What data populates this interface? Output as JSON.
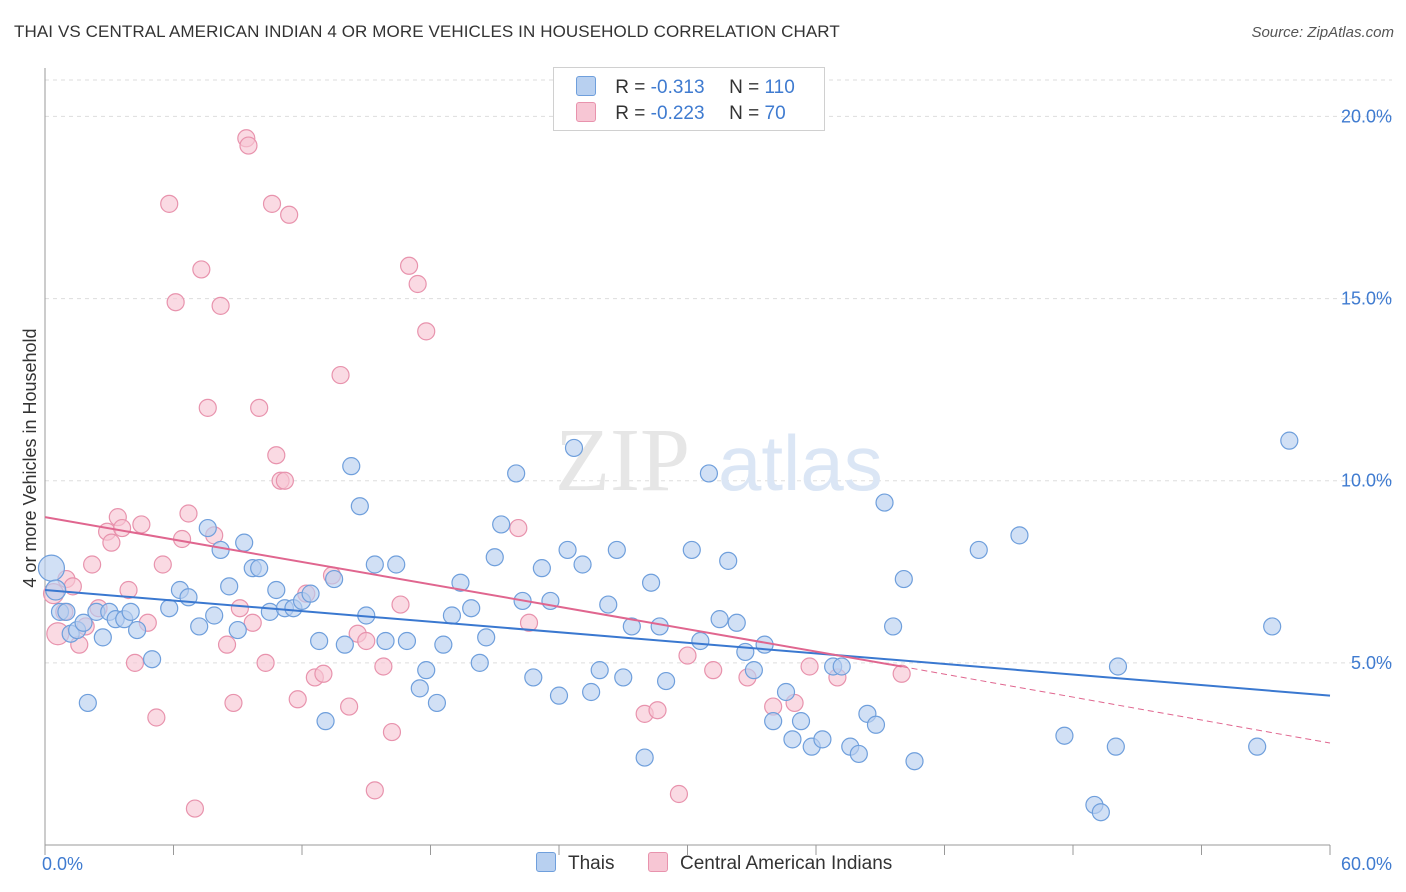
{
  "title": "THAI VS CENTRAL AMERICAN INDIAN 4 OR MORE VEHICLES IN HOUSEHOLD CORRELATION CHART",
  "source": "Source: ZipAtlas.com",
  "watermark": {
    "zip": "ZIP",
    "atlas": "atlas"
  },
  "legend_top": {
    "row1": {
      "r_label": "R =",
      "r_value": "-0.313",
      "n_label": "N =",
      "n_value": "110"
    },
    "row2": {
      "r_label": "R =",
      "r_value": "-0.223",
      "n_label": "N =",
      "n_value": "70"
    }
  },
  "colors": {
    "thai_fill": "#b8d0f0",
    "thai_stroke": "#6f9fdc",
    "thai_line": "#3a78d0",
    "cai_fill": "#f7c6d4",
    "cai_stroke": "#e893ad",
    "cai_line": "#e0668f",
    "grid": "#dddddd",
    "tick_text": "#3f7bd0"
  },
  "chart_data": {
    "type": "scatter",
    "title": "THAI VS CENTRAL AMERICAN INDIAN 4 OR MORE VEHICLES IN HOUSEHOLD CORRELATION CHART",
    "xlabel": "",
    "ylabel": "4 or more Vehicles in Household",
    "xlim": [
      0,
      60
    ],
    "ylim": [
      0,
      21
    ],
    "x_tick_labels": [
      "0.0%",
      "60.0%"
    ],
    "y_ticks": [
      5,
      10,
      15,
      20
    ],
    "y_tick_labels": [
      "5.0%",
      "10.0%",
      "15.0%",
      "20.0%"
    ],
    "grid": true,
    "legend_position": "top-center",
    "series": [
      {
        "name": "Thais",
        "trend": {
          "x": [
            0,
            60
          ],
          "y": [
            7.0,
            4.1
          ]
        },
        "points": [
          [
            0.3,
            7.6
          ],
          [
            0.5,
            7.0
          ],
          [
            0.7,
            6.4
          ],
          [
            1.0,
            6.4
          ],
          [
            1.2,
            5.8
          ],
          [
            1.5,
            5.9
          ],
          [
            1.8,
            6.1
          ],
          [
            2.0,
            3.9
          ],
          [
            2.4,
            6.4
          ],
          [
            2.7,
            5.7
          ],
          [
            3.0,
            6.4
          ],
          [
            3.3,
            6.2
          ],
          [
            3.7,
            6.2
          ],
          [
            4.0,
            6.4
          ],
          [
            4.3,
            5.9
          ],
          [
            5.0,
            5.1
          ],
          [
            5.8,
            6.5
          ],
          [
            6.3,
            7.0
          ],
          [
            6.7,
            6.8
          ],
          [
            7.2,
            6.0
          ],
          [
            7.6,
            8.7
          ],
          [
            7.9,
            6.3
          ],
          [
            8.2,
            8.1
          ],
          [
            8.6,
            7.1
          ],
          [
            9.0,
            5.9
          ],
          [
            9.3,
            8.3
          ],
          [
            9.7,
            7.6
          ],
          [
            10.0,
            7.6
          ],
          [
            10.5,
            6.4
          ],
          [
            10.8,
            7.0
          ],
          [
            11.2,
            6.5
          ],
          [
            11.6,
            6.5
          ],
          [
            12.0,
            6.7
          ],
          [
            12.4,
            6.9
          ],
          [
            12.8,
            5.6
          ],
          [
            13.1,
            3.4
          ],
          [
            13.5,
            7.3
          ],
          [
            14.0,
            5.5
          ],
          [
            14.3,
            10.4
          ],
          [
            14.7,
            9.3
          ],
          [
            15.0,
            6.3
          ],
          [
            15.4,
            7.7
          ],
          [
            15.9,
            5.6
          ],
          [
            16.4,
            7.7
          ],
          [
            16.9,
            5.6
          ],
          [
            17.5,
            4.3
          ],
          [
            17.8,
            4.8
          ],
          [
            18.3,
            3.9
          ],
          [
            18.6,
            5.5
          ],
          [
            19.0,
            6.3
          ],
          [
            19.4,
            7.2
          ],
          [
            19.9,
            6.5
          ],
          [
            20.3,
            5.0
          ],
          [
            20.6,
            5.7
          ],
          [
            21.0,
            7.9
          ],
          [
            21.3,
            8.8
          ],
          [
            22.0,
            10.2
          ],
          [
            22.3,
            6.7
          ],
          [
            22.8,
            4.6
          ],
          [
            23.2,
            7.6
          ],
          [
            23.6,
            6.7
          ],
          [
            24.0,
            4.1
          ],
          [
            24.4,
            8.1
          ],
          [
            24.7,
            10.9
          ],
          [
            25.1,
            7.7
          ],
          [
            25.5,
            4.2
          ],
          [
            25.9,
            4.8
          ],
          [
            26.3,
            6.6
          ],
          [
            26.7,
            8.1
          ],
          [
            27.0,
            4.6
          ],
          [
            27.4,
            6.0
          ],
          [
            28.0,
            2.4
          ],
          [
            28.3,
            7.2
          ],
          [
            28.7,
            6.0
          ],
          [
            29.0,
            4.5
          ],
          [
            30.2,
            8.1
          ],
          [
            30.6,
            5.6
          ],
          [
            31.0,
            10.2
          ],
          [
            31.5,
            6.2
          ],
          [
            31.9,
            7.8
          ],
          [
            32.3,
            6.1
          ],
          [
            32.7,
            5.3
          ],
          [
            33.1,
            4.8
          ],
          [
            33.6,
            5.5
          ],
          [
            34.0,
            3.4
          ],
          [
            34.6,
            4.2
          ],
          [
            34.9,
            2.9
          ],
          [
            35.3,
            3.4
          ],
          [
            35.8,
            2.7
          ],
          [
            36.3,
            2.9
          ],
          [
            36.8,
            4.9
          ],
          [
            37.2,
            4.9
          ],
          [
            37.6,
            2.7
          ],
          [
            38.0,
            2.5
          ],
          [
            38.4,
            3.6
          ],
          [
            38.8,
            3.3
          ],
          [
            39.2,
            9.4
          ],
          [
            39.6,
            6.0
          ],
          [
            40.1,
            7.3
          ],
          [
            40.6,
            2.3
          ],
          [
            43.6,
            8.1
          ],
          [
            45.5,
            8.5
          ],
          [
            47.6,
            3.0
          ],
          [
            49.0,
            1.1
          ],
          [
            49.3,
            0.9
          ],
          [
            50.0,
            2.7
          ],
          [
            50.1,
            4.9
          ],
          [
            56.6,
            2.7
          ],
          [
            57.3,
            6.0
          ],
          [
            58.1,
            11.1
          ]
        ]
      },
      {
        "name": "Central American Indians",
        "trend": {
          "x": [
            0,
            40.0
          ],
          "y": [
            9.0,
            4.9
          ]
        },
        "trend_extension": {
          "x": [
            40.0,
            60
          ],
          "y": [
            4.9,
            2.8
          ]
        },
        "points": [
          [
            0.4,
            6.9
          ],
          [
            0.6,
            5.8
          ],
          [
            0.9,
            6.4
          ],
          [
            1.0,
            7.3
          ],
          [
            1.3,
            7.1
          ],
          [
            1.6,
            5.5
          ],
          [
            1.9,
            6.0
          ],
          [
            2.2,
            7.7
          ],
          [
            2.5,
            6.5
          ],
          [
            2.9,
            8.6
          ],
          [
            3.1,
            8.3
          ],
          [
            3.4,
            9.0
          ],
          [
            3.6,
            8.7
          ],
          [
            3.9,
            7.0
          ],
          [
            4.2,
            5.0
          ],
          [
            4.5,
            8.8
          ],
          [
            4.8,
            6.1
          ],
          [
            5.2,
            3.5
          ],
          [
            5.5,
            7.7
          ],
          [
            5.8,
            17.6
          ],
          [
            6.1,
            14.9
          ],
          [
            6.4,
            8.4
          ],
          [
            6.7,
            9.1
          ],
          [
            7.0,
            1.0
          ],
          [
            7.3,
            15.8
          ],
          [
            7.6,
            12.0
          ],
          [
            7.9,
            8.5
          ],
          [
            8.2,
            14.8
          ],
          [
            8.5,
            5.5
          ],
          [
            8.8,
            3.9
          ],
          [
            9.1,
            6.5
          ],
          [
            9.4,
            19.4
          ],
          [
            9.5,
            19.2
          ],
          [
            9.7,
            6.1
          ],
          [
            10.0,
            12.0
          ],
          [
            10.3,
            5.0
          ],
          [
            10.6,
            17.6
          ],
          [
            10.8,
            10.7
          ],
          [
            11.0,
            10.0
          ],
          [
            11.2,
            10.0
          ],
          [
            11.4,
            17.3
          ],
          [
            11.8,
            4.0
          ],
          [
            12.2,
            6.9
          ],
          [
            12.6,
            4.6
          ],
          [
            13.0,
            4.7
          ],
          [
            13.4,
            7.4
          ],
          [
            13.8,
            12.9
          ],
          [
            14.2,
            3.8
          ],
          [
            14.6,
            5.8
          ],
          [
            15.0,
            5.6
          ],
          [
            15.4,
            1.5
          ],
          [
            15.8,
            4.9
          ],
          [
            16.2,
            3.1
          ],
          [
            16.6,
            6.6
          ],
          [
            17.0,
            15.9
          ],
          [
            17.4,
            15.4
          ],
          [
            17.8,
            14.1
          ],
          [
            22.1,
            8.7
          ],
          [
            22.6,
            6.1
          ],
          [
            28.0,
            3.6
          ],
          [
            28.6,
            3.7
          ],
          [
            29.6,
            1.4
          ],
          [
            30.0,
            5.2
          ],
          [
            31.2,
            4.8
          ],
          [
            32.8,
            4.6
          ],
          [
            34.0,
            3.8
          ],
          [
            35.0,
            3.9
          ],
          [
            35.7,
            4.9
          ],
          [
            37.0,
            4.6
          ],
          [
            40.0,
            4.7
          ]
        ]
      }
    ]
  },
  "legend_bottom": {
    "thai": "Thais",
    "cai": "Central American Indians"
  }
}
